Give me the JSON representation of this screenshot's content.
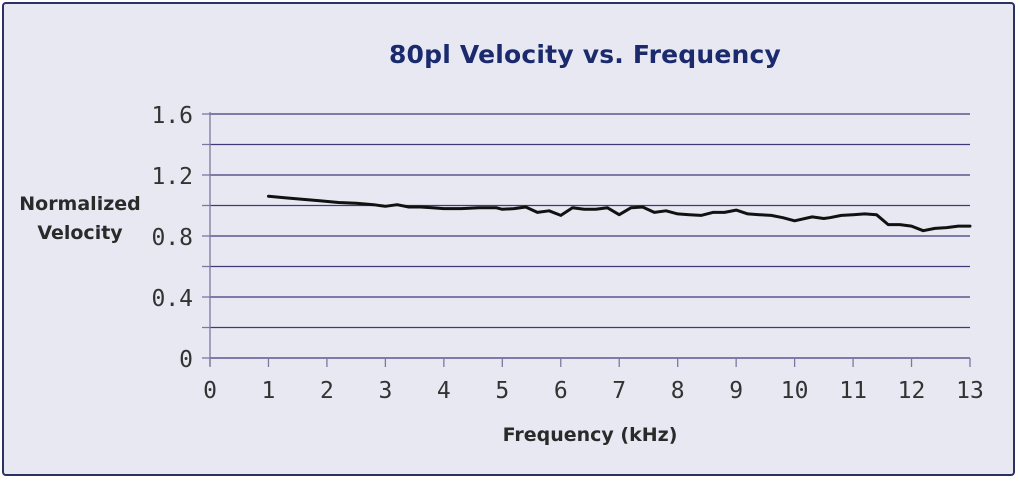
{
  "chart_data": {
    "type": "line",
    "title": "80pl Velocity vs. Frequency",
    "xlabel": "Frequency (kHz)",
    "ylabel": [
      "Normalized",
      "Velocity"
    ],
    "xlim": [
      0,
      13
    ],
    "ylim": [
      0,
      1.6
    ],
    "x_ticks": [
      "0",
      "1",
      "2",
      "3",
      "4",
      "5",
      "6",
      "7",
      "8",
      "9",
      "10",
      "11",
      "12",
      "13"
    ],
    "y_ticks": [
      "0",
      "0.4",
      "0.8",
      "1.2",
      "1.6"
    ],
    "y_tick_values": [
      0,
      0.4,
      0.8,
      1.2,
      1.6
    ],
    "y_gridlines": [
      0.2,
      0.4,
      0.6,
      0.8,
      1.0,
      1.2,
      1.4,
      1.6
    ],
    "grid": true,
    "series": [
      {
        "name": "Normalized Velocity",
        "color": "#111111",
        "x": [
          1.0,
          1.3,
          1.6,
          1.9,
          2.2,
          2.5,
          2.8,
          3.0,
          3.2,
          3.4,
          3.6,
          3.8,
          4.0,
          4.3,
          4.6,
          4.9,
          5.0,
          5.2,
          5.4,
          5.6,
          5.8,
          6.0,
          6.2,
          6.4,
          6.6,
          6.8,
          7.0,
          7.2,
          7.4,
          7.6,
          7.8,
          8.0,
          8.2,
          8.4,
          8.6,
          8.8,
          9.0,
          9.2,
          9.4,
          9.6,
          9.8,
          10.0,
          10.3,
          10.5,
          10.6,
          10.8,
          11.0,
          11.2,
          11.4,
          11.6,
          11.8,
          12.0,
          12.2,
          12.4,
          12.6,
          12.8,
          13.0
        ],
        "values": [
          1.06,
          1.05,
          1.04,
          1.03,
          1.02,
          1.015,
          1.005,
          0.995,
          1.005,
          0.99,
          0.99,
          0.985,
          0.98,
          0.98,
          0.985,
          0.985,
          0.975,
          0.98,
          0.99,
          0.955,
          0.965,
          0.935,
          0.985,
          0.975,
          0.975,
          0.985,
          0.94,
          0.985,
          0.99,
          0.955,
          0.965,
          0.945,
          0.94,
          0.935,
          0.955,
          0.955,
          0.97,
          0.945,
          0.94,
          0.935,
          0.92,
          0.9,
          0.925,
          0.915,
          0.92,
          0.935,
          0.94,
          0.945,
          0.94,
          0.875,
          0.875,
          0.865,
          0.835,
          0.85,
          0.855,
          0.865,
          0.865
        ]
      }
    ]
  },
  "colors": {
    "background": "#e8e8f2",
    "border": "#2b3160",
    "title": "#1a2a6c",
    "gridline": "#3e3a78",
    "axis": "#7a7aa0",
    "line": "#111111"
  }
}
